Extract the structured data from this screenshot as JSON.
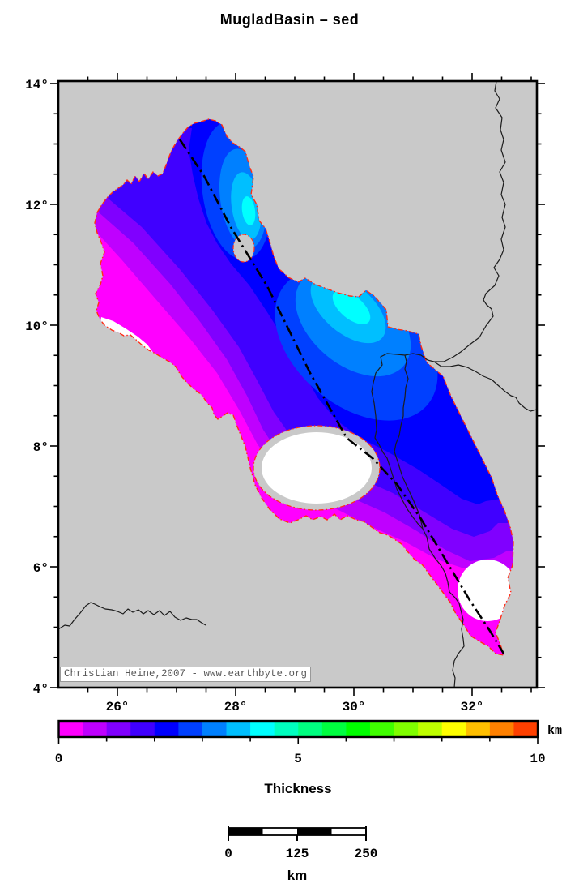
{
  "title": "MugladBasin – sed",
  "map": {
    "attribution": "Christian Heine,2007 - www.earthbyte.org",
    "y_tick_labels": [
      "14°",
      "12°",
      "10°",
      "8°",
      "6°",
      "4°"
    ],
    "x_tick_labels": [
      "26°",
      "28°",
      "30°",
      "32°"
    ]
  },
  "colorbar": {
    "title": "Thickness",
    "unit": "km",
    "tick_labels": [
      "0",
      "5",
      "10"
    ],
    "min_km": 0,
    "max_km": 10,
    "step_km": 0.5,
    "colors": [
      "#ff00ff",
      "#bf00ff",
      "#8000ff",
      "#4000ff",
      "#0000ff",
      "#0040ff",
      "#0080ff",
      "#00bfff",
      "#00ffff",
      "#00ffbf",
      "#00ff80",
      "#00ff40",
      "#00ff00",
      "#40ff00",
      "#80ff00",
      "#bfff00",
      "#ffff00",
      "#ffbf00",
      "#ff8000",
      "#ff4000"
    ]
  },
  "scalebar": {
    "tick_labels": [
      "0",
      "125",
      "250"
    ],
    "unit": "km"
  },
  "colors": {
    "land_gray": "#c9c9c9",
    "basin_outline_red": "#ff2d16",
    "river_black": "#1c1c1c",
    "nodata_white": "#ffffff"
  },
  "chart_data": {
    "type": "heatmap",
    "title": "MugladBasin – sed",
    "variable": "Sediment thickness",
    "unit": "km",
    "value_range": [
      0,
      10
    ],
    "contour_interval_km": 0.5,
    "lon_range_deg": [
      25.0,
      33.1
    ],
    "lat_range_deg": [
      4.0,
      14.0
    ],
    "lon_major_ticks_deg": [
      26,
      28,
      30,
      32
    ],
    "lat_major_ticks_deg": [
      4,
      6,
      8,
      10,
      12,
      14
    ],
    "legend_position": "below",
    "max_mapped_thickness_km": 4.5,
    "depocenters": [
      {
        "lon_deg": 28.2,
        "lat_deg": 11.9,
        "thickness_km": 4.5
      },
      {
        "lon_deg": 30.0,
        "lat_deg": 9.9,
        "thickness_km": 4.5
      }
    ],
    "features": [
      "basin outline (red dash-dot)",
      "cross-section line (black dash-dot)",
      "rivers (thin black)",
      "no-data areas (white)"
    ]
  }
}
